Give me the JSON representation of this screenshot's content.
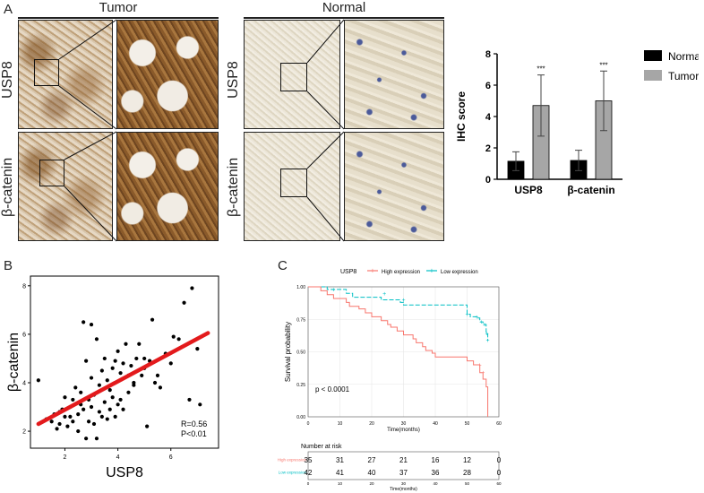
{
  "panel_labels": {
    "a": "A",
    "b": "B",
    "c": "C"
  },
  "ihc": {
    "group_tumor": "Tumor",
    "group_normal": "Normal",
    "row_usp8": "USP8",
    "row_bcatenin": "β-catenin"
  },
  "colors": {
    "normal_bar": "#000000",
    "tumor_bar": "#a6a6a6",
    "fit_line": "#e31a1c",
    "high_expr": "#f8766d",
    "low_expr": "#00bfc4"
  },
  "chart_data": [
    {
      "id": "ihc_bar",
      "type": "bar",
      "categories": [
        "USP8",
        "β-catenin"
      ],
      "series": [
        {
          "name": "Normal",
          "values": [
            1.15,
            1.2
          ],
          "errors": [
            0.6,
            0.65
          ]
        },
        {
          "name": "Tumor",
          "values": [
            4.7,
            5.0
          ],
          "errors": [
            1.95,
            1.9
          ]
        }
      ],
      "significance": [
        "***",
        "***"
      ],
      "ylabel": "IHC score",
      "ylim": [
        0,
        8
      ],
      "yticks": [
        "0",
        "2",
        "4",
        "6",
        "8"
      ],
      "legend": "top-right"
    },
    {
      "id": "correlation",
      "type": "scatter",
      "xlabel": "USP8",
      "ylabel": "β-catenin",
      "xlim": [
        0.7,
        7.8
      ],
      "ylim": [
        1.3,
        8.4
      ],
      "xticks": [
        "2",
        "4",
        "6"
      ],
      "yticks": [
        "2",
        "4",
        "6",
        "8"
      ],
      "fit": {
        "x0": 1.0,
        "y0": 2.3,
        "x1": 7.4,
        "y1": 6.05
      },
      "annotation": [
        "R=0.56",
        "P<0.01"
      ],
      "points": [
        [
          1.0,
          4.1
        ],
        [
          1.3,
          2.5
        ],
        [
          1.5,
          2.4
        ],
        [
          1.6,
          2.7
        ],
        [
          1.7,
          2.1
        ],
        [
          1.8,
          2.8
        ],
        [
          1.8,
          2.3
        ],
        [
          1.9,
          2.9
        ],
        [
          2.0,
          2.6
        ],
        [
          2.0,
          3.4
        ],
        [
          2.1,
          2.2
        ],
        [
          2.2,
          3.0
        ],
        [
          2.2,
          2.6
        ],
        [
          2.3,
          3.3
        ],
        [
          2.3,
          2.4
        ],
        [
          2.4,
          3.8
        ],
        [
          2.5,
          2.7
        ],
        [
          2.5,
          2.0
        ],
        [
          2.6,
          3.1
        ],
        [
          2.6,
          3.6
        ],
        [
          2.7,
          2.9
        ],
        [
          2.7,
          6.5
        ],
        [
          2.8,
          1.7
        ],
        [
          2.8,
          4.9
        ],
        [
          2.9,
          3.3
        ],
        [
          2.9,
          2.4
        ],
        [
          3.0,
          6.4
        ],
        [
          3.0,
          3.0
        ],
        [
          3.0,
          4.2
        ],
        [
          3.1,
          2.3
        ],
        [
          3.1,
          3.5
        ],
        [
          3.2,
          1.7
        ],
        [
          3.2,
          5.8
        ],
        [
          3.3,
          2.8
        ],
        [
          3.3,
          3.9
        ],
        [
          3.4,
          4.5
        ],
        [
          3.4,
          2.6
        ],
        [
          3.5,
          3.2
        ],
        [
          3.5,
          5.0
        ],
        [
          3.6,
          2.5
        ],
        [
          3.6,
          4.1
        ],
        [
          3.7,
          3.7
        ],
        [
          3.7,
          2.9
        ],
        [
          3.8,
          4.6
        ],
        [
          3.8,
          3.4
        ],
        [
          3.9,
          2.6
        ],
        [
          3.9,
          4.9
        ],
        [
          4.0,
          3.1
        ],
        [
          4.0,
          5.3
        ],
        [
          4.1,
          3.3
        ],
        [
          4.1,
          4.4
        ],
        [
          4.2,
          2.9
        ],
        [
          4.2,
          4.8
        ],
        [
          4.3,
          5.6
        ],
        [
          4.4,
          4.3
        ],
        [
          4.4,
          3.6
        ],
        [
          4.5,
          4.7
        ],
        [
          4.6,
          3.9
        ],
        [
          4.6,
          4.0
        ],
        [
          4.7,
          5.0
        ],
        [
          4.8,
          5.6
        ],
        [
          4.9,
          4.3
        ],
        [
          5.0,
          4.6
        ],
        [
          5.0,
          5.0
        ],
        [
          5.1,
          2.2
        ],
        [
          5.2,
          4.9
        ],
        [
          5.3,
          6.6
        ],
        [
          5.4,
          4.0
        ],
        [
          5.5,
          4.3
        ],
        [
          5.6,
          3.8
        ],
        [
          5.8,
          5.2
        ],
        [
          6.0,
          4.8
        ],
        [
          6.1,
          5.9
        ],
        [
          6.3,
          5.8
        ],
        [
          6.5,
          7.3
        ],
        [
          6.7,
          3.3
        ],
        [
          6.8,
          7.9
        ],
        [
          7.0,
          5.4
        ],
        [
          7.1,
          3.1
        ]
      ]
    },
    {
      "id": "survival",
      "type": "line",
      "legend_title": "USP8",
      "series_names": [
        "High expression",
        "Low expression"
      ],
      "xlabel": "Time(months)",
      "ylabel": "Survival probability",
      "xlim": [
        0,
        60
      ],
      "ylim": [
        0,
        1
      ],
      "xticks": [
        "0",
        "10",
        "20",
        "30",
        "40",
        "50",
        "60"
      ],
      "yticks": [
        "0.00",
        "0.25",
        "0.50",
        "0.75",
        "1.00"
      ],
      "pvalue": "p < 0.0001",
      "high_curve": [
        [
          0,
          1.0
        ],
        [
          3,
          1.0
        ],
        [
          4,
          0.97
        ],
        [
          6,
          0.94
        ],
        [
          8,
          0.91
        ],
        [
          12,
          0.88
        ],
        [
          13,
          0.85
        ],
        [
          16,
          0.83
        ],
        [
          18,
          0.8
        ],
        [
          20,
          0.77
        ],
        [
          23,
          0.74
        ],
        [
          25,
          0.71
        ],
        [
          26,
          0.69
        ],
        [
          28,
          0.66
        ],
        [
          30,
          0.63
        ],
        [
          33,
          0.6
        ],
        [
          34,
          0.57
        ],
        [
          36,
          0.54
        ],
        [
          37,
          0.51
        ],
        [
          39,
          0.49
        ],
        [
          40,
          0.46
        ],
        [
          49,
          0.46
        ],
        [
          50,
          0.43
        ],
        [
          52,
          0.4
        ],
        [
          54,
          0.34
        ],
        [
          55,
          0.29
        ],
        [
          56,
          0.23
        ],
        [
          56.5,
          0.0
        ]
      ],
      "low_curve": [
        [
          0,
          1.0
        ],
        [
          5,
          1.0
        ],
        [
          6,
          0.98
        ],
        [
          12,
          0.95
        ],
        [
          13,
          0.95
        ],
        [
          14,
          0.92
        ],
        [
          22,
          0.92
        ],
        [
          23,
          0.9
        ],
        [
          28,
          0.9
        ],
        [
          29,
          0.88
        ],
        [
          30,
          0.86
        ],
        [
          48,
          0.86
        ],
        [
          50,
          0.79
        ],
        [
          51,
          0.77
        ],
        [
          52,
          0.77
        ],
        [
          53,
          0.76
        ],
        [
          54,
          0.73
        ],
        [
          55,
          0.71
        ],
        [
          56,
          0.64
        ],
        [
          56.5,
          0.59
        ]
      ],
      "censor_high": [
        [
          54,
          0.4
        ],
        [
          55,
          0.34
        ]
      ],
      "censor_low": [
        [
          8,
          0.98
        ],
        [
          24,
          0.95
        ],
        [
          30,
          0.9
        ],
        [
          50,
          0.79
        ],
        [
          53,
          0.77
        ],
        [
          54.5,
          0.73
        ],
        [
          55.5,
          0.71
        ],
        [
          56.2,
          0.64
        ],
        [
          56.5,
          0.59
        ]
      ],
      "risk_table": {
        "title": "Number at risk",
        "rows": [
          {
            "label": "High expression",
            "values": [
              "35",
              "31",
              "27",
              "21",
              "16",
              "12",
              "0"
            ]
          },
          {
            "label": "Low expression",
            "values": [
              "42",
              "41",
              "40",
              "37",
              "36",
              "28",
              "0"
            ]
          }
        ],
        "xlabel": "Time(months)",
        "xticks": [
          "0",
          "10",
          "20",
          "30",
          "40",
          "50",
          "60"
        ]
      }
    }
  ]
}
